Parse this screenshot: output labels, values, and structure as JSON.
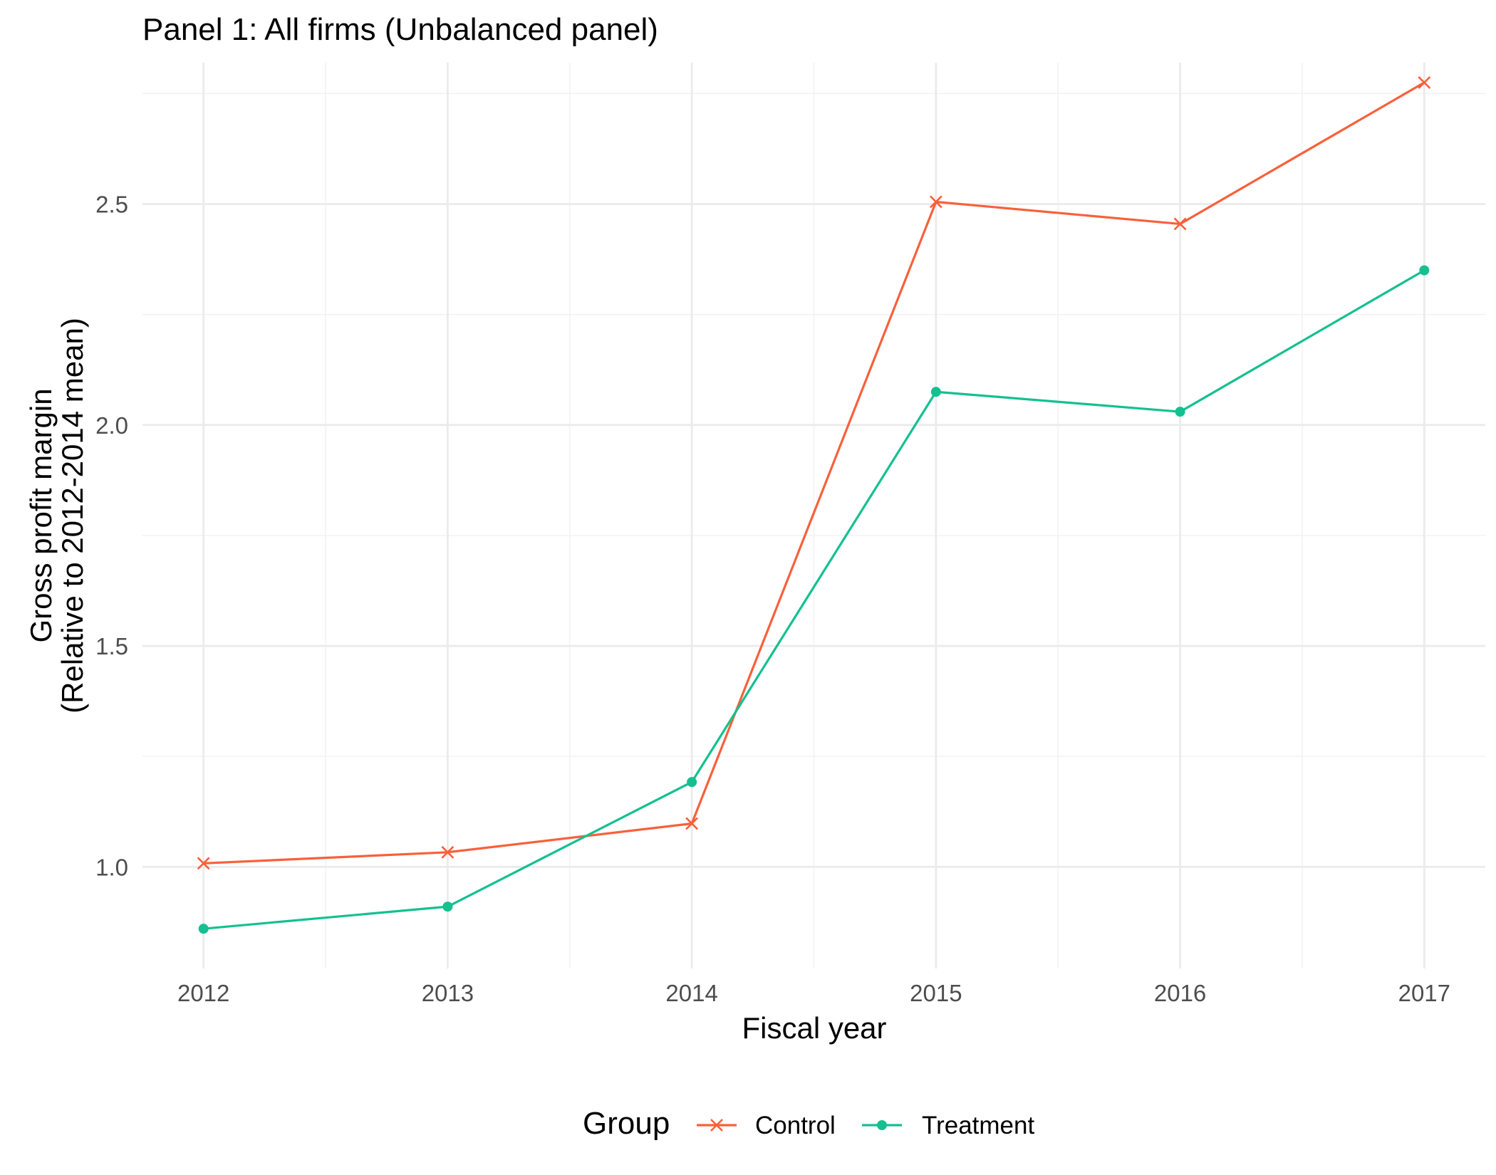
{
  "chart_data": {
    "type": "line",
    "title": "Panel 1: All firms (Unbalanced panel)",
    "xlabel": "Fiscal year",
    "ylabel_lines": [
      "Gross profit margin",
      "(Relative to 2012-2014 mean)"
    ],
    "x": [
      2012,
      2013,
      2014,
      2015,
      2016,
      2017
    ],
    "x_tick_labels": [
      "2012",
      "2013",
      "2014",
      "2015",
      "2016",
      "2017"
    ],
    "y_ticks": [
      1.0,
      1.5,
      2.0,
      2.5
    ],
    "y_tick_labels": [
      "1.0",
      "1.5",
      "2.0",
      "2.5"
    ],
    "ylim": [
      0.77,
      2.82
    ],
    "xlim": [
      2011.75,
      2017.25
    ],
    "grid": true,
    "legend": {
      "title": "Group",
      "position": "bottom"
    },
    "series": [
      {
        "name": "Control",
        "color": "#F8603A",
        "marker": "x",
        "values": [
          1.008,
          1.033,
          1.098,
          2.505,
          2.455,
          2.775
        ]
      },
      {
        "name": "Treatment",
        "color": "#14C090",
        "marker": "circle",
        "values": [
          0.86,
          0.91,
          1.192,
          2.075,
          2.03,
          2.35
        ]
      }
    ]
  }
}
